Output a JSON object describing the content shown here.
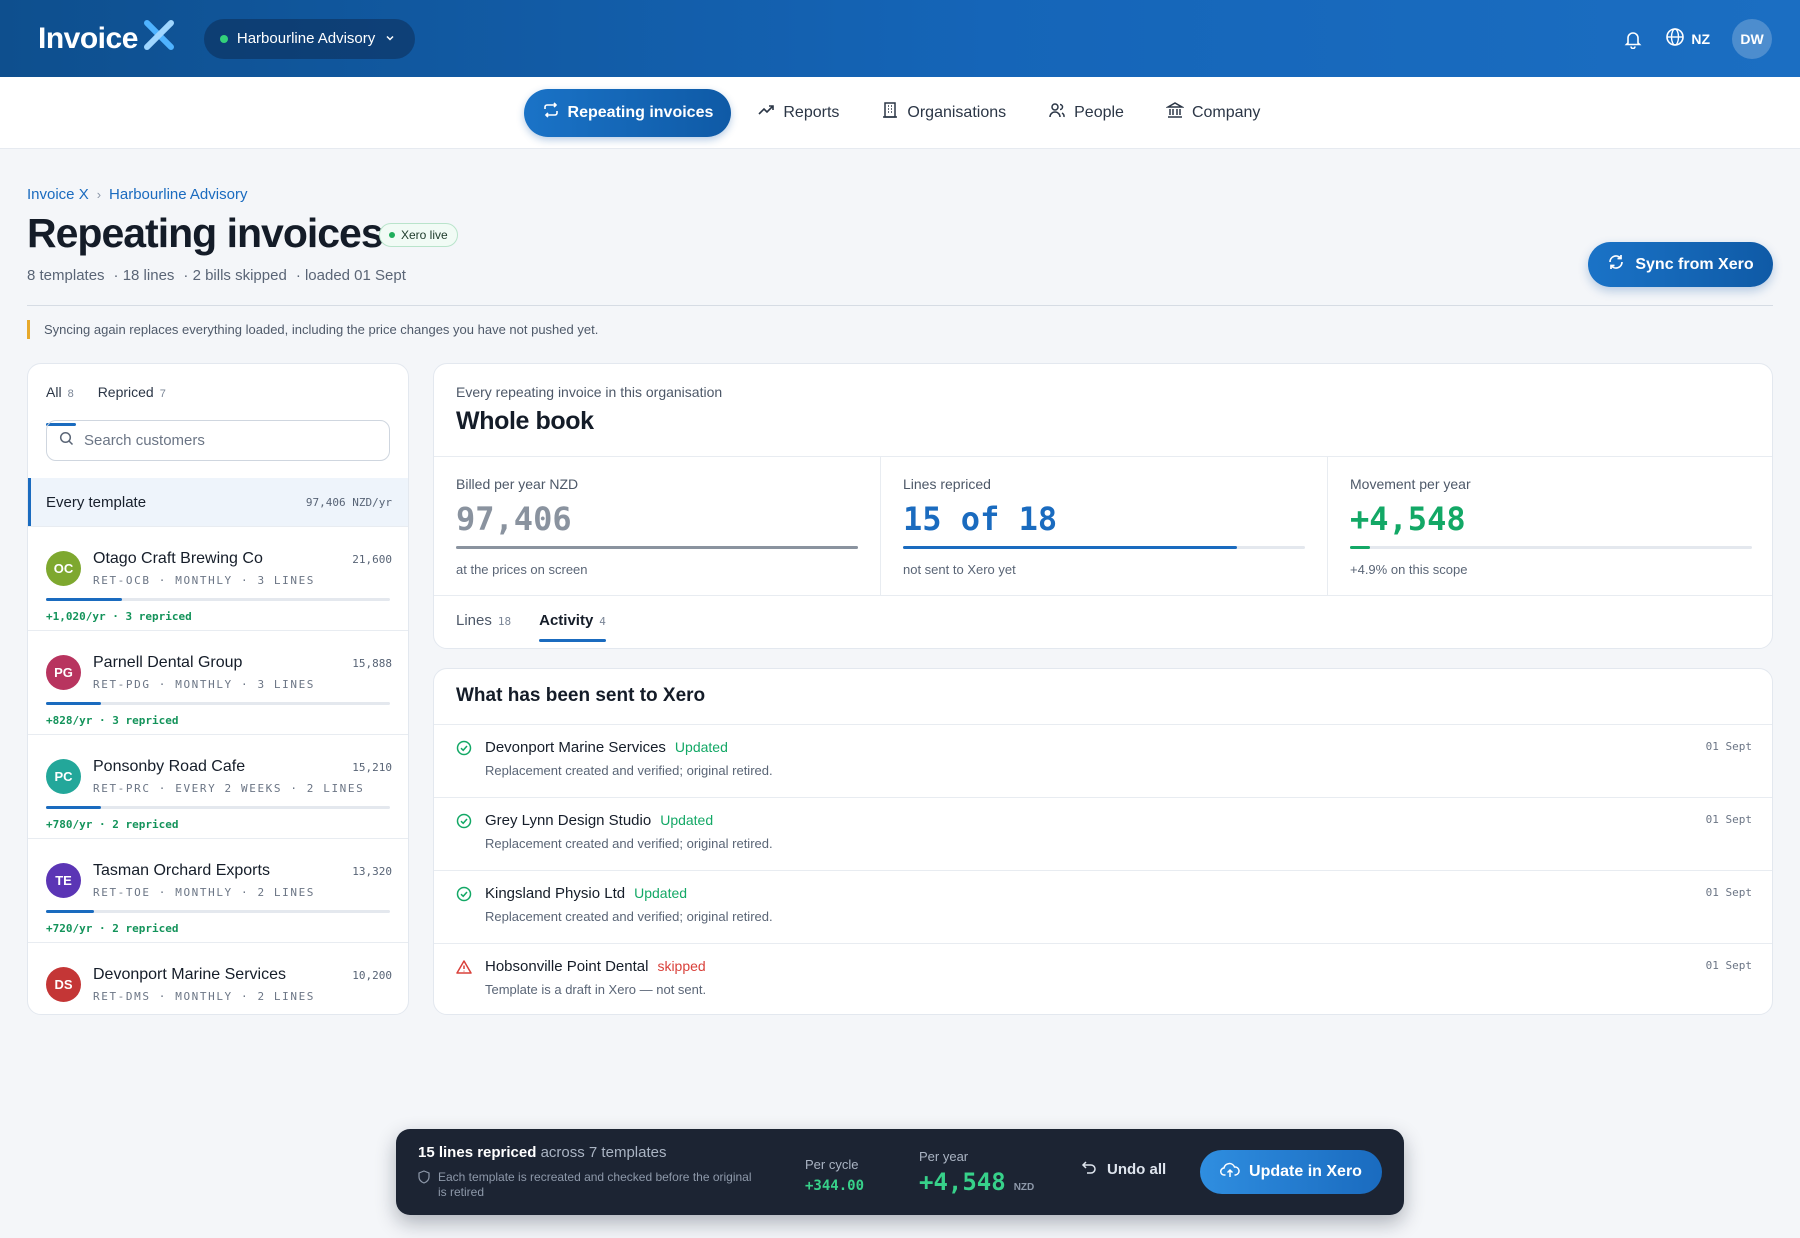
{
  "app": {
    "name": "Invoice",
    "org_switch": "Harbourline Advisory",
    "locale": "NZ",
    "user_initials": "DW"
  },
  "nav": [
    {
      "label": "Repeating invoices",
      "icon": "repeat-icon",
      "active": true
    },
    {
      "label": "Reports",
      "icon": "trend-icon"
    },
    {
      "label": "Organisations",
      "icon": "building-icon"
    },
    {
      "label": "People",
      "icon": "people-icon"
    },
    {
      "label": "Company",
      "icon": "bank-icon"
    }
  ],
  "breadcrumb": [
    "Invoice X",
    "Harbourline Advisory"
  ],
  "header": {
    "title": "Repeating invoices",
    "badge": "Xero live",
    "meta": [
      "8 templates",
      "· 18 lines",
      "· 2 bills skipped",
      "· loaded 01 Sept"
    ],
    "sync_button": "Sync from Xero",
    "warning": "Syncing again replaces everything loaded, including the price changes you have not pushed yet."
  },
  "left_panel": {
    "tabs": [
      {
        "label": "All",
        "count": "8"
      },
      {
        "label": "Repriced",
        "count": "7"
      }
    ],
    "search_placeholder": "Search customers",
    "every_template": {
      "label": "Every template",
      "value": "97,406 NZD/yr"
    },
    "customers": [
      {
        "initials": "OC",
        "name": "Otago Craft Brewing Co",
        "amount": "21,600",
        "sub": "RET-OCB · MONTHLY · 3 LINES",
        "delta": "+1,020/yr · 3 repriced",
        "progress": 0.22,
        "color": "#7ea82f"
      },
      {
        "initials": "PG",
        "name": "Parnell Dental Group",
        "amount": "15,888",
        "sub": "RET-PDG · MONTHLY · 3 LINES",
        "delta": "+828/yr · 3 repriced",
        "progress": 0.16,
        "color": "#b8345f"
      },
      {
        "initials": "PC",
        "name": "Ponsonby Road Cafe",
        "amount": "15,210",
        "sub": "RET-PRC · EVERY 2 WEEKS · 2 LINES",
        "delta": "+780/yr · 2 repriced",
        "progress": 0.16,
        "color": "#23a79a"
      },
      {
        "initials": "TE",
        "name": "Tasman Orchard Exports",
        "amount": "13,320",
        "sub": "RET-TOE · MONTHLY · 2 LINES",
        "delta": "+720/yr · 2 repriced",
        "progress": 0.14,
        "color": "#5b35b5"
      },
      {
        "initials": "DS",
        "name": "Devonport Marine Services",
        "amount": "10,200",
        "sub": "RET-DMS · MONTHLY · 2 LINES",
        "delta": "",
        "progress": 0.1,
        "color": "#c43636"
      }
    ]
  },
  "book": {
    "eyebrow": "Every repeating invoice in this organisation",
    "title": "Whole book",
    "stats": [
      {
        "label": "Billed per year NZD",
        "value": "97,406",
        "note": "at the prices on screen",
        "progress": 1.0,
        "color": "#8a939f"
      },
      {
        "label": "Lines repriced",
        "value": "15 of 18",
        "note": "not sent to Xero yet",
        "progress": 0.83,
        "color": "#1a6bbf"
      },
      {
        "label": "Movement per year",
        "value": "+4,548",
        "note": "+4.9% on this scope",
        "progress": 0.05,
        "color": "#13a866"
      }
    ],
    "tabs": [
      {
        "label": "Lines",
        "count": "18"
      },
      {
        "label": "Activity",
        "count": "4",
        "active": true
      }
    ]
  },
  "activity": {
    "title": "What has been sent to Xero",
    "items": [
      {
        "name": "Devonport Marine Services",
        "status": "Updated",
        "desc": "Replacement created and verified; original retired.",
        "date": "01 Sept",
        "ok": true
      },
      {
        "name": "Grey Lynn Design Studio",
        "status": "Updated",
        "desc": "Replacement created and verified; original retired.",
        "date": "01 Sept",
        "ok": true
      },
      {
        "name": "Kingsland Physio Ltd",
        "status": "Updated",
        "desc": "Replacement created and verified; original retired.",
        "date": "01 Sept",
        "ok": true
      },
      {
        "name": "Hobsonville Point Dental",
        "status": "skipped",
        "desc": "Template is a draft in Xero — not sent.",
        "date": "01 Sept",
        "ok": false
      }
    ]
  },
  "bottom_bar": {
    "title_bold": "15 lines repriced",
    "title_rest": "across 7 templates",
    "note": "Each template is recreated and checked before the original is retired",
    "per_cycle_label": "Per cycle",
    "per_cycle_value": "+344.00",
    "per_year_label": "Per year",
    "per_year_value": "+4,548",
    "per_year_unit": "NZD",
    "undo": "Undo all",
    "update": "Update in Xero"
  },
  "colors": {
    "brand": "#1565b8",
    "accent": "#1a6bbf",
    "positive": "#13a866",
    "danger": "#d9403a"
  }
}
